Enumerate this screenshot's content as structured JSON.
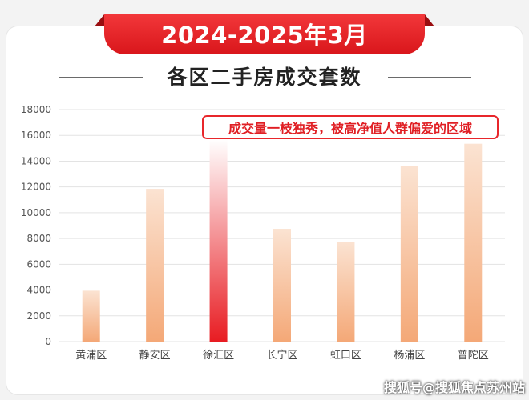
{
  "header": {
    "banner_title": "2024-2025年3月",
    "subtitle": "各区二手房成交套数"
  },
  "callout": {
    "text": "成交量一枝独秀，被高净值人群偏爱的区域",
    "target_category": "徐汇区"
  },
  "watermark": "搜狐号@搜狐焦点苏州站",
  "colors": {
    "banner": "#e3262a",
    "bar_gradient_top": "#fbe3d2",
    "bar_gradient_bottom": "#f4a877",
    "highlight_gradient_top": "#ffffff",
    "highlight_gradient_bottom": "#e81c22"
  },
  "chart_data": {
    "type": "bar",
    "title": "各区二手房成交套数",
    "categories": [
      "黄浦区",
      "静安区",
      "徐汇区",
      "长宁区",
      "虹口区",
      "杨浦区",
      "普陀区"
    ],
    "values": [
      3950,
      11850,
      15700,
      8750,
      7750,
      13650,
      15350
    ],
    "highlight": "徐汇区",
    "ylim": [
      0,
      18000
    ],
    "yticks": [
      0,
      2000,
      4000,
      6000,
      8000,
      10000,
      12000,
      14000,
      16000,
      18000
    ],
    "grid": true,
    "xlabel": "",
    "ylabel": ""
  }
}
